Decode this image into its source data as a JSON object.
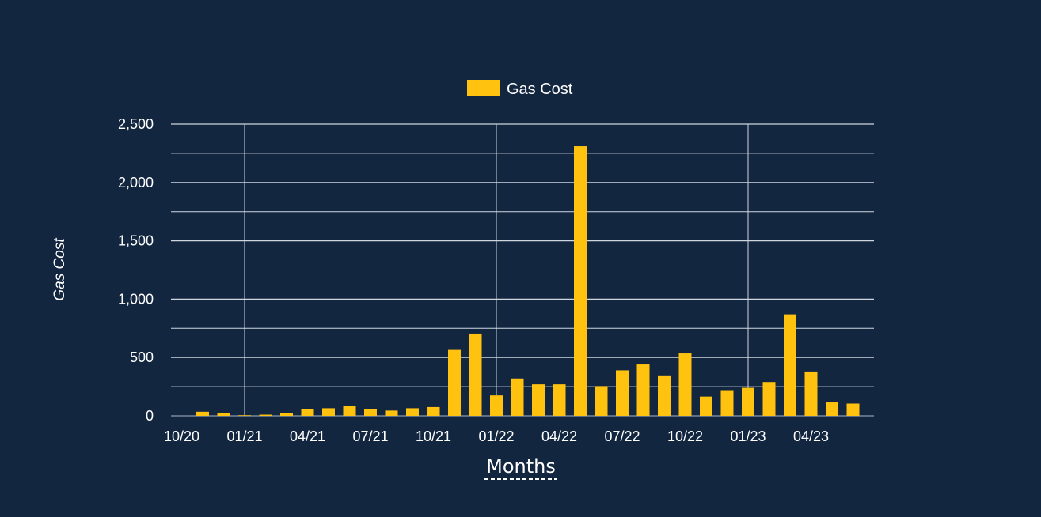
{
  "chart_data": {
    "type": "bar",
    "legend": {
      "label": "Gas Cost",
      "color": "#FFC20E",
      "placement": "top-center"
    },
    "xlabel": "Months",
    "ylabel": "Gas Cost",
    "ylim": [
      0,
      2500
    ],
    "y_ticks": [
      "0",
      "500",
      "1,000",
      "1,500",
      "2,000",
      "2,500"
    ],
    "y_tick_values": [
      0,
      500,
      1000,
      1500,
      2000,
      2500
    ],
    "x_tick_labels": [
      "10/20",
      "01/21",
      "04/21",
      "07/21",
      "10/21",
      "01/22",
      "04/22",
      "07/22",
      "10/22",
      "01/23",
      "04/23"
    ],
    "categories": [
      "11/20",
      "12/20",
      "01/21",
      "02/21",
      "03/21",
      "04/21",
      "05/21",
      "06/21",
      "07/21",
      "08/21",
      "09/21",
      "10/21",
      "11/21",
      "12/21",
      "01/22",
      "02/22",
      "03/22",
      "04/22",
      "05/22",
      "06/22",
      "07/22",
      "08/22",
      "09/22",
      "10/22",
      "11/22",
      "12/22",
      "01/23",
      "02/23",
      "03/23",
      "04/23",
      "05/23",
      "06/23",
      "07/23"
    ],
    "values": [
      35,
      25,
      5,
      10,
      25,
      55,
      65,
      85,
      55,
      45,
      65,
      75,
      565,
      705,
      175,
      320,
      270,
      270,
      2310,
      255,
      390,
      440,
      340,
      535,
      165,
      220,
      240,
      290,
      870,
      380,
      115,
      105,
      0
    ],
    "grid": true,
    "colors": {
      "background": "#132640",
      "bar": "#FFC20E",
      "grid": "#cfd6e0",
      "text": "#ffffff"
    }
  }
}
